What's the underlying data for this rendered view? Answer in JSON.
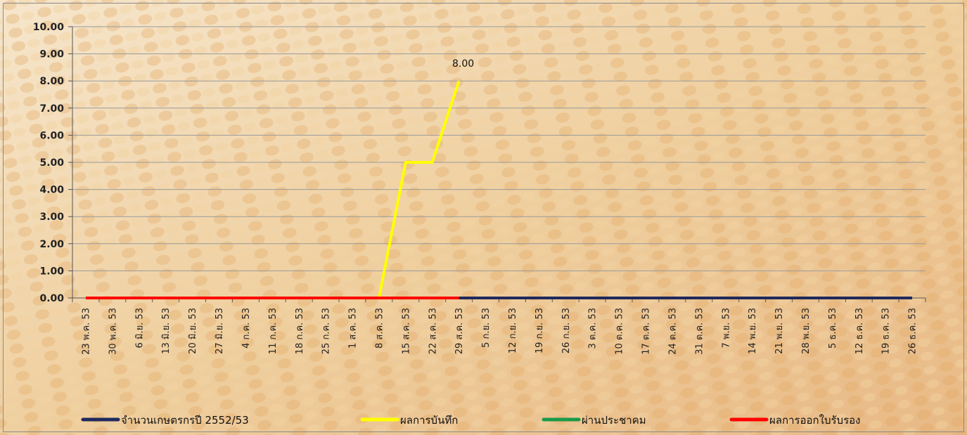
{
  "colors": {
    "background_light": "#f3e0c4",
    "background_dark": "#d99a5a",
    "grid": "#9a9a9a",
    "axis": "#555555"
  },
  "chart_data": {
    "type": "line",
    "ylim": [
      0,
      10
    ],
    "y_ticks": [
      "0.00",
      "1.00",
      "2.00",
      "3.00",
      "4.00",
      "5.00",
      "6.00",
      "7.00",
      "8.00",
      "9.00",
      "10.00"
    ],
    "grid": true,
    "legend_position": "bottom",
    "categories": [
      "23 พ.ค. 53",
      "30 พ.ค. 53",
      "6 มิ.ย. 53",
      "13 มิ.ย. 53",
      "20 มิ.ย. 53",
      "27 มิ.ย. 53",
      "4 ก.ค. 53",
      "11 ก.ค. 53",
      "18 ก.ค. 53",
      "25 ก.ค. 53",
      "1 ส.ค. 53",
      "8 ส.ค. 53",
      "15 ส.ค. 53",
      "22 ส.ค. 53",
      "29 ส.ค. 53",
      "5 ก.ย. 53",
      "12 ก.ย. 53",
      "19 ก.ย. 53",
      "26 ก.ย. 53",
      "3 ต.ค. 53",
      "10 ต.ค. 53",
      "17 ต.ค. 53",
      "24 ต.ค. 53",
      "31 ต.ค. 53",
      "7 พ.ย. 53",
      "14 พ.ย. 53",
      "21 พ.ย. 53",
      "28 พ.ย. 53",
      "5 ธ.ค. 53",
      "12 ธ.ค. 53",
      "19 ธ.ค. 53",
      "26 ธ.ค. 53"
    ],
    "series": [
      {
        "name": "จำนวนเกษตรกรปี  2552/53",
        "color": "#1f2a5c",
        "values": [
          0,
          0,
          0,
          0,
          0,
          0,
          0,
          0,
          0,
          0,
          0,
          0,
          0,
          0,
          0,
          0,
          0,
          0,
          0,
          0,
          0,
          0,
          0,
          0,
          0,
          0,
          0,
          0,
          0,
          0,
          0,
          0
        ]
      },
      {
        "name": "ผลการบันทึก",
        "color": "#ffff00",
        "values": [
          null,
          null,
          null,
          null,
          null,
          null,
          null,
          null,
          null,
          null,
          null,
          0,
          5,
          5,
          8,
          null,
          null,
          null,
          null,
          null,
          null,
          null,
          null,
          null,
          null,
          null,
          null,
          null,
          null,
          null,
          null,
          null
        ]
      },
      {
        "name": "ผ่านประชาคม",
        "color": "#1a9a4a",
        "values": [
          0,
          0,
          0,
          0,
          0,
          0,
          0,
          0,
          0,
          0,
          0,
          0,
          0,
          0,
          0,
          null,
          null,
          null,
          null,
          null,
          null,
          null,
          null,
          null,
          null,
          null,
          null,
          null,
          null,
          null,
          null,
          null
        ]
      },
      {
        "name": "ผลการออกใบรับรอง",
        "color": "#ff0000",
        "values": [
          0,
          0,
          0,
          0,
          0,
          0,
          0,
          0,
          0,
          0,
          0,
          0,
          0,
          0,
          0,
          null,
          null,
          null,
          null,
          null,
          null,
          null,
          null,
          null,
          null,
          null,
          null,
          null,
          null,
          null,
          null,
          null
        ]
      }
    ],
    "annotations": [
      {
        "series": 1,
        "index": 14,
        "label": "8.00"
      }
    ]
  }
}
